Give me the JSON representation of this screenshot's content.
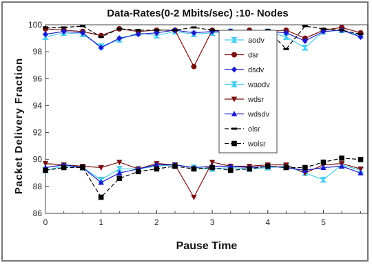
{
  "chart_data": {
    "type": "line",
    "title": "Data-Rates(0-2 Mbits/sec) :10- Nodes",
    "xlabel": "Pause Time",
    "ylabel": "Packet Delivery Fraction",
    "xlim": [
      0,
      5.8
    ],
    "ylim": [
      86,
      100
    ],
    "xticks": [
      0,
      1,
      2,
      3,
      4,
      5
    ],
    "yticks": [
      86,
      88,
      90,
      92,
      94,
      96,
      98,
      100
    ],
    "grid": false,
    "legend_position": "top-right",
    "x": [
      0,
      0.33,
      0.67,
      1,
      1.33,
      1.67,
      2,
      2.33,
      2.67,
      3,
      3.33,
      3.67,
      4,
      4.33,
      4.67,
      5,
      5.33,
      5.67
    ],
    "series": [
      {
        "name": "aodv",
        "color": "#44ccee",
        "marker": "bowtie",
        "dash": "",
        "values": [
          99.1,
          99.4,
          99.3,
          98.4,
          98.9,
          99.4,
          99.2,
          99.5,
          99.3,
          99.4,
          99.5,
          99.4,
          99.5,
          99.1,
          98.3,
          99.5,
          99.6,
          99.2
        ]
      },
      {
        "name": "dsr",
        "color": "#7a1010",
        "marker": "circle",
        "dash": "",
        "values": [
          99.7,
          99.6,
          99.5,
          99.2,
          99.7,
          99.5,
          99.6,
          99.6,
          96.9,
          99.6,
          99.5,
          99.6,
          99.5,
          99.6,
          99.0,
          99.6,
          99.8,
          99.4
        ]
      },
      {
        "name": "dsdv",
        "color": "#1a1acc",
        "marker": "diamond",
        "dash": "",
        "values": [
          99.3,
          99.5,
          99.4,
          98.3,
          99.0,
          99.3,
          99.4,
          99.6,
          99.4,
          99.5,
          99.5,
          99.4,
          99.5,
          99.4,
          98.8,
          99.5,
          99.6,
          99.1
        ]
      },
      {
        "name": "waodv",
        "color": "#44ccee",
        "marker": "bowtie",
        "dash": "",
        "values": [
          89.2,
          89.5,
          89.4,
          88.5,
          89.3,
          89.3,
          89.5,
          89.6,
          89.4,
          89.3,
          89.4,
          89.3,
          89.4,
          89.5,
          89.0,
          88.5,
          89.6,
          89.2
        ]
      },
      {
        "name": "wdsr",
        "color": "#7a1010",
        "marker": "triangle-down",
        "dash": "",
        "values": [
          89.7,
          89.6,
          89.5,
          89.4,
          89.8,
          89.3,
          89.7,
          89.6,
          87.2,
          89.8,
          89.5,
          89.5,
          89.6,
          89.6,
          89.0,
          89.6,
          89.7,
          89.3
        ]
      },
      {
        "name": "wdsdv",
        "color": "#1a1acc",
        "marker": "triangle-up",
        "dash": "",
        "values": [
          89.4,
          89.6,
          89.4,
          88.3,
          89.0,
          89.3,
          89.6,
          89.6,
          89.4,
          89.5,
          89.5,
          89.4,
          89.5,
          89.4,
          89.2,
          89.4,
          89.5,
          89.0
        ]
      },
      {
        "name": "olsr",
        "color": "#000000",
        "marker": "dash",
        "dash": "6,3",
        "values": [
          99.8,
          99.8,
          99.9,
          99.1,
          99.7,
          99.6,
          99.6,
          99.6,
          99.8,
          99.6,
          99.5,
          99.5,
          99.6,
          98.2,
          99.9,
          99.7,
          99.6,
          99.3
        ]
      },
      {
        "name": "wolsr",
        "color": "#000000",
        "marker": "square",
        "dash": "6,3",
        "values": [
          89.2,
          89.4,
          89.4,
          87.2,
          88.6,
          89.1,
          89.3,
          89.5,
          89.3,
          89.4,
          89.2,
          89.3,
          89.5,
          89.4,
          89.4,
          89.8,
          90.1,
          90.0
        ]
      }
    ]
  }
}
